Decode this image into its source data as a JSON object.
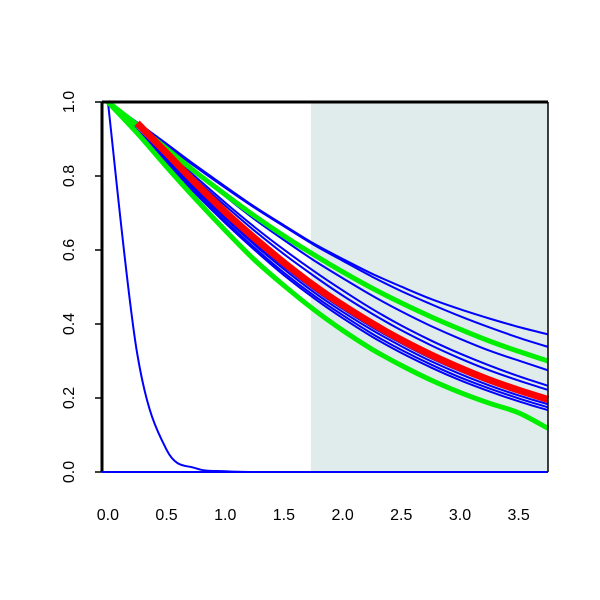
{
  "chart_data": {
    "type": "line",
    "title": "",
    "xlabel": "",
    "ylabel": "",
    "xlim": [
      -0.05,
      3.75
    ],
    "ylim": [
      0.0,
      1.0
    ],
    "x_ticks": [
      "0.0",
      "0.5",
      "1.0",
      "1.5",
      "2.0",
      "2.5",
      "3.0",
      "3.5"
    ],
    "y_ticks": [
      "0.0",
      "0.2",
      "0.4",
      "0.6",
      "0.8",
      "1.0"
    ],
    "grid": false,
    "shaded_region": {
      "x_from": 1.73,
      "x_to": 3.75,
      "color": "#dfeceb"
    },
    "x": [
      0.0,
      0.25,
      0.5,
      0.75,
      1.0,
      1.25,
      1.5,
      1.75,
      2.0,
      2.25,
      2.5,
      2.75,
      3.0,
      3.25,
      3.5,
      3.75
    ],
    "series": [
      {
        "color": "#0000ff",
        "width": 2,
        "values": [
          1.0,
          0.32,
          0.06,
          0.01,
          0.002,
          0.0,
          0.0,
          0.0,
          0.0,
          0.0,
          0.0,
          0.0,
          0.0,
          0.0,
          0.0,
          0.0
        ]
      },
      {
        "color": "#0000ff",
        "width": 2,
        "values": [
          1.0,
          0.945,
          0.887,
          0.828,
          0.772,
          0.717,
          0.667,
          0.618,
          0.576,
          0.536,
          0.501,
          0.468,
          0.44,
          0.415,
          0.392,
          0.372
        ]
      },
      {
        "color": "#0000ff",
        "width": 2,
        "values": [
          1.0,
          0.941,
          0.882,
          0.824,
          0.768,
          0.714,
          0.664,
          0.615,
          0.571,
          0.528,
          0.489,
          0.454,
          0.421,
          0.391,
          0.363,
          0.338
        ]
      },
      {
        "color": "#0000ff",
        "width": 2,
        "values": [
          1.0,
          0.938,
          0.873,
          0.808,
          0.745,
          0.683,
          0.627,
          0.573,
          0.524,
          0.477,
          0.434,
          0.395,
          0.36,
          0.328,
          0.301,
          0.275
        ]
      },
      {
        "color": "#0000ff",
        "width": 2,
        "values": [
          1.0,
          0.935,
          0.866,
          0.797,
          0.728,
          0.662,
          0.601,
          0.544,
          0.491,
          0.441,
          0.396,
          0.356,
          0.32,
          0.288,
          0.259,
          0.233
        ]
      },
      {
        "color": "#0000ff",
        "width": 2,
        "values": [
          1.0,
          0.933,
          0.862,
          0.79,
          0.72,
          0.652,
          0.589,
          0.531,
          0.477,
          0.428,
          0.383,
          0.343,
          0.307,
          0.275,
          0.247,
          0.222
        ]
      },
      {
        "color": "#0000ff",
        "width": 2,
        "values": [
          1.0,
          0.925,
          0.846,
          0.766,
          0.692,
          0.62,
          0.555,
          0.495,
          0.441,
          0.392,
          0.348,
          0.308,
          0.273,
          0.242,
          0.215,
          0.19
        ]
      },
      {
        "color": "#0000ff",
        "width": 2,
        "values": [
          1.0,
          0.923,
          0.843,
          0.762,
          0.686,
          0.614,
          0.548,
          0.487,
          0.433,
          0.384,
          0.34,
          0.3,
          0.265,
          0.234,
          0.207,
          0.183
        ]
      },
      {
        "color": "#0000ff",
        "width": 2,
        "values": [
          1.0,
          0.921,
          0.839,
          0.756,
          0.679,
          0.606,
          0.539,
          0.478,
          0.424,
          0.374,
          0.33,
          0.291,
          0.256,
          0.226,
          0.199,
          0.175
        ]
      },
      {
        "color": "#0000ff",
        "width": 2,
        "values": [
          1.0,
          0.919,
          0.835,
          0.751,
          0.673,
          0.6,
          0.532,
          0.471,
          0.416,
          0.366,
          0.322,
          0.283,
          0.248,
          0.218,
          0.191,
          0.167
        ]
      },
      {
        "color": "#00ee00",
        "width": 5,
        "values": [
          1.0,
          0.938,
          0.874,
          0.81,
          0.75,
          0.692,
          0.638,
          0.588,
          0.541,
          0.497,
          0.457,
          0.42,
          0.386,
          0.354,
          0.326,
          0.3
        ]
      },
      {
        "color": "#00ee00",
        "width": 5,
        "values": [
          1.0,
          0.916,
          0.825,
          0.737,
          0.653,
          0.573,
          0.504,
          0.44,
          0.383,
          0.332,
          0.288,
          0.249,
          0.215,
          0.186,
          0.16,
          0.118
        ]
      },
      {
        "color": "#ff0000",
        "width": 7,
        "values": [
          null,
          0.943,
          0.862,
          0.78,
          0.703,
          0.632,
          0.566,
          0.505,
          0.451,
          0.402,
          0.357,
          0.317,
          0.281,
          0.249,
          0.221,
          0.196
        ]
      }
    ]
  }
}
